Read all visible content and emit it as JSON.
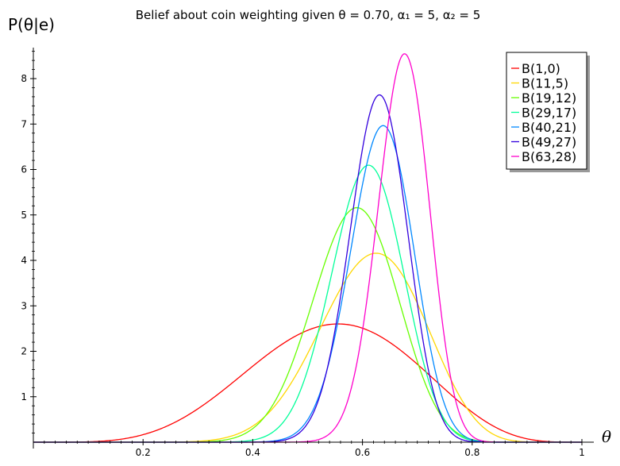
{
  "chart_data": {
    "type": "line",
    "title": "Belief about coin weighting given θ = 0.70, α₁ = 5, α₂ = 5",
    "xlabel": "θ",
    "ylabel": "P(θ|e)",
    "xlim": [
      0,
      1
    ],
    "ylim": [
      0,
      8.7
    ],
    "x_ticks": [
      "0.2",
      "0.4",
      "0.6",
      "0.8",
      "1"
    ],
    "y_ticks": [
      "1",
      "2",
      "3",
      "4",
      "5",
      "6",
      "7",
      "8"
    ],
    "grid": false,
    "legend_position": "top-right",
    "series": [
      {
        "name": "B(1,0)",
        "color": "#ff0000",
        "a": 1,
        "b": 0
      },
      {
        "name": "B(11,5)",
        "color": "#ffd700",
        "a": 11,
        "b": 5
      },
      {
        "name": "B(19,12)",
        "color": "#66ff00",
        "a": 19,
        "b": 12
      },
      {
        "name": "B(29,17)",
        "color": "#00ff99",
        "a": 29,
        "b": 17
      },
      {
        "name": "B(40,21)",
        "color": "#0088ff",
        "a": 40,
        "b": 21
      },
      {
        "name": "B(49,27)",
        "color": "#3300dd",
        "a": 49,
        "b": 27
      },
      {
        "name": "B(63,28)",
        "color": "#ff00cc",
        "a": 63,
        "b": 28
      }
    ]
  }
}
